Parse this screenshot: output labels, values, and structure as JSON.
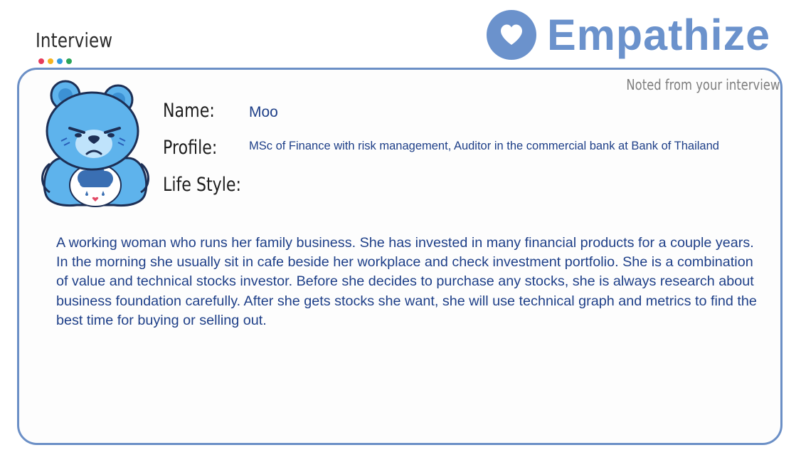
{
  "header": {
    "title": "Interview",
    "dot_colors": [
      "#e63b5b",
      "#f5b41f",
      "#2f9be0",
      "#2aa55a"
    ]
  },
  "brand": {
    "name": "Empathize",
    "icon": "heart-icon",
    "color": "#6b92cc"
  },
  "card": {
    "note": "Noted from your interview",
    "avatar_icon": "grumpy-bear-avatar",
    "fields": {
      "name_label": "Name:",
      "name_value": "Moo",
      "profile_label": "Profile:",
      "profile_value": "MSc of Finance with risk management, Auditor in the commercial bank at Bank of Thailand",
      "lifestyle_label": "Life Style:"
    },
    "description": "A working woman who runs her family business. She has invested in many financial products for a couple years. In the morning she usually sit in cafe beside her workplace and check investment portfolio. She is a combination of value and technical stocks investor. Before she decides to purchase any stocks, she is always research about business foundation carefully. After she gets stocks she want, she will use technical graph and metrics to find the best time for buying or selling out."
  }
}
